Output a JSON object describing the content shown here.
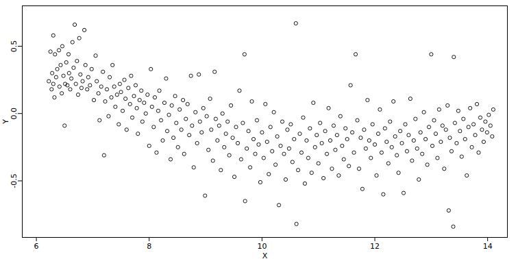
{
  "chart_data": {
    "type": "scatter",
    "x_label": "X",
    "y_label": "Y",
    "xlim": [
      5.75,
      14.35
    ],
    "xticks": [
      6,
      8,
      10,
      12,
      14
    ],
    "ylim": [
      -0.92,
      0.8
    ],
    "yticks": [
      -0.5,
      {
        "value": 0,
        "label": "0.0"
      },
      0.5
    ],
    "color": "#000000",
    "marker": "circle",
    "x": [
      6.22,
      6.25,
      6.27,
      6.28,
      6.3,
      6.3,
      6.32,
      6.33,
      6.35,
      6.37,
      6.4,
      6.41,
      6.43,
      6.45,
      6.46,
      6.48,
      6.5,
      6.51,
      6.53,
      6.55,
      6.57,
      6.58,
      6.6,
      6.62,
      6.64,
      6.66,
      6.68,
      6.7,
      6.72,
      6.74,
      6.76,
      6.78,
      6.8,
      6.82,
      6.85,
      6.87,
      6.9,
      6.92,
      6.95,
      6.98,
      7.02,
      7.05,
      7.07,
      7.1,
      7.12,
      7.15,
      7.18,
      7.2,
      7.22,
      7.25,
      7.28,
      7.3,
      7.33,
      7.35,
      7.38,
      7.4,
      7.43,
      7.46,
      7.48,
      7.5,
      7.53,
      7.56,
      7.58,
      7.6,
      7.63,
      7.66,
      7.68,
      7.7,
      7.73,
      7.76,
      7.78,
      7.8,
      7.83,
      7.86,
      7.88,
      7.91,
      7.94,
      7.97,
      8.0,
      8.03,
      8.05,
      8.08,
      8.1,
      8.13,
      8.16,
      8.18,
      8.21,
      8.24,
      8.27,
      8.3,
      8.32,
      8.35,
      8.38,
      8.4,
      8.43,
      8.46,
      8.48,
      8.51,
      8.54,
      8.57,
      8.6,
      8.62,
      8.65,
      8.68,
      8.71,
      8.74,
      8.76,
      8.79,
      8.82,
      8.85,
      8.88,
      8.9,
      8.93,
      8.96,
      8.99,
      9.02,
      9.05,
      9.08,
      9.1,
      9.13,
      9.16,
      9.18,
      9.21,
      9.24,
      9.27,
      9.3,
      9.33,
      9.36,
      9.39,
      9.42,
      9.45,
      9.48,
      9.51,
      9.54,
      9.57,
      9.6,
      9.63,
      9.66,
      9.69,
      9.7,
      9.73,
      9.76,
      9.79,
      9.82,
      9.85,
      9.88,
      9.91,
      9.94,
      9.97,
      10.0,
      10.03,
      10.06,
      10.09,
      10.12,
      10.15,
      10.18,
      10.21,
      10.24,
      10.27,
      10.3,
      10.33,
      10.36,
      10.39,
      10.42,
      10.45,
      10.48,
      10.51,
      10.54,
      10.57,
      10.6,
      10.61,
      10.64,
      10.67,
      10.7,
      10.73,
      10.76,
      10.79,
      10.82,
      10.85,
      10.88,
      10.91,
      10.94,
      10.97,
      11.0,
      11.03,
      11.06,
      11.09,
      11.12,
      11.15,
      11.18,
      11.21,
      11.24,
      11.27,
      11.3,
      11.33,
      11.36,
      11.39,
      11.42,
      11.45,
      11.48,
      11.51,
      11.54,
      11.57,
      11.6,
      11.63,
      11.66,
      11.69,
      11.72,
      11.75,
      11.78,
      11.81,
      11.84,
      11.87,
      11.9,
      11.93,
      11.96,
      12.0,
      12.03,
      12.06,
      12.09,
      12.12,
      12.15,
      12.18,
      12.21,
      12.24,
      12.27,
      12.3,
      12.33,
      12.36,
      12.39,
      12.42,
      12.45,
      12.48,
      12.51,
      12.54,
      12.57,
      12.6,
      12.63,
      12.66,
      12.69,
      12.72,
      12.75,
      12.78,
      12.81,
      12.84,
      12.87,
      12.9,
      12.93,
      12.96,
      13.0,
      13.02,
      13.05,
      13.08,
      13.11,
      13.14,
      13.17,
      13.2,
      13.23,
      13.26,
      13.29,
      13.31,
      13.33,
      13.36,
      13.39,
      13.4,
      13.42,
      13.45,
      13.48,
      13.51,
      13.54,
      13.57,
      13.6,
      13.63,
      13.66,
      13.69,
      13.72,
      13.75,
      13.78,
      13.81,
      13.84,
      13.87,
      13.9,
      13.93,
      13.96,
      13.99,
      14.02,
      14.05,
      14.08,
      14.1
    ],
    "values": [
      0.24,
      0.46,
      0.18,
      0.3,
      0.58,
      0.22,
      0.12,
      0.44,
      0.27,
      0.33,
      0.47,
      0.2,
      0.36,
      0.15,
      0.5,
      0.28,
      -0.09,
      0.22,
      0.38,
      0.21,
      0.44,
      0.3,
      0.18,
      0.26,
      0.53,
      0.34,
      0.66,
      0.22,
      0.39,
      0.14,
      0.56,
      0.29,
      0.19,
      0.24,
      0.62,
      0.36,
      0.18,
      0.27,
      0.21,
      0.33,
      0.1,
      0.43,
      0.24,
      0.15,
      -0.05,
      0.2,
      0.31,
      -0.31,
      0.09,
      0.18,
      -0.02,
      0.27,
      0.12,
      0.36,
      0.2,
      0.05,
      0.14,
      -0.08,
      0.22,
      0.16,
      0.02,
      0.25,
      0.11,
      -0.12,
      0.19,
      0.07,
      0.28,
      -0.03,
      0.13,
      0.21,
      0.04,
      -0.15,
      0.1,
      0.17,
      -0.06,
      0.08,
      0.0,
      0.14,
      -0.24,
      0.33,
      0.05,
      -0.1,
      0.12,
      -0.29,
      0.02,
      0.17,
      -0.05,
      -0.2,
      0.08,
      0.26,
      -0.13,
      -0.01,
      -0.34,
      0.06,
      -0.18,
      0.13,
      -0.07,
      -0.25,
      0.03,
      -0.12,
      0.1,
      -0.3,
      -0.04,
      0.07,
      -0.16,
      0.28,
      -0.09,
      -0.4,
      0.01,
      -0.22,
      0.29,
      -0.06,
      -0.14,
      0.04,
      -0.61,
      -0.02,
      -0.27,
      0.11,
      -0.12,
      -0.35,
      0.31,
      -0.04,
      -0.2,
      -0.09,
      -0.42,
      0.0,
      -0.25,
      -0.15,
      -0.06,
      -0.31,
      0.06,
      -0.18,
      -0.47,
      -0.1,
      -0.22,
      0.17,
      -0.34,
      -0.07,
      0.44,
      -0.65,
      -0.26,
      -0.13,
      -0.4,
      0.09,
      -0.19,
      -0.3,
      -0.05,
      -0.23,
      -0.51,
      -0.14,
      -0.33,
      0.07,
      -0.21,
      -0.45,
      -0.1,
      -0.28,
      0.01,
      -0.38,
      -0.17,
      -0.68,
      -0.24,
      -0.06,
      -0.3,
      -0.49,
      -0.12,
      -0.26,
      -0.08,
      -0.36,
      -0.19,
      0.67,
      -0.82,
      -0.42,
      -0.15,
      -0.29,
      -0.03,
      -0.52,
      -0.2,
      -0.33,
      -0.11,
      -0.44,
      0.08,
      -0.25,
      -0.16,
      -0.37,
      -0.07,
      -0.22,
      -0.48,
      -0.13,
      -0.3,
      0.04,
      -0.2,
      -0.41,
      -0.09,
      -0.27,
      -0.16,
      -0.46,
      -0.02,
      -0.24,
      -0.34,
      -0.11,
      -0.19,
      -0.39,
      0.21,
      -0.14,
      -0.29,
      0.44,
      -0.05,
      -0.41,
      -0.18,
      -0.56,
      -0.12,
      -0.26,
      0.1,
      -0.2,
      -0.33,
      -0.08,
      -0.23,
      -0.46,
      -0.15,
      0.03,
      -0.29,
      -0.6,
      -0.11,
      -0.21,
      -0.37,
      -0.06,
      -0.25,
      0.09,
      -0.17,
      -0.31,
      -0.44,
      -0.13,
      -0.22,
      -0.59,
      -0.08,
      -0.28,
      -0.16,
      0.11,
      -0.35,
      -0.2,
      -0.04,
      -0.26,
      -0.49,
      -0.14,
      -0.3,
      0.01,
      -0.19,
      -0.38,
      -0.1,
      0.44,
      -0.24,
      -0.05,
      -0.15,
      -0.33,
      0.03,
      -0.21,
      -0.09,
      -0.41,
      -0.12,
      0.06,
      -0.72,
      -0.18,
      -0.28,
      -0.84,
      0.42,
      -0.07,
      -0.22,
      0.02,
      -0.13,
      -0.32,
      -0.04,
      -0.19,
      -0.46,
      -0.1,
      0.04,
      -0.25,
      -0.08,
      -0.16,
      0.07,
      -0.29,
      -0.03,
      -0.12,
      -0.21,
      -0.06,
      -0.14,
      -0.01,
      -0.09,
      -0.17,
      0.03
    ]
  }
}
